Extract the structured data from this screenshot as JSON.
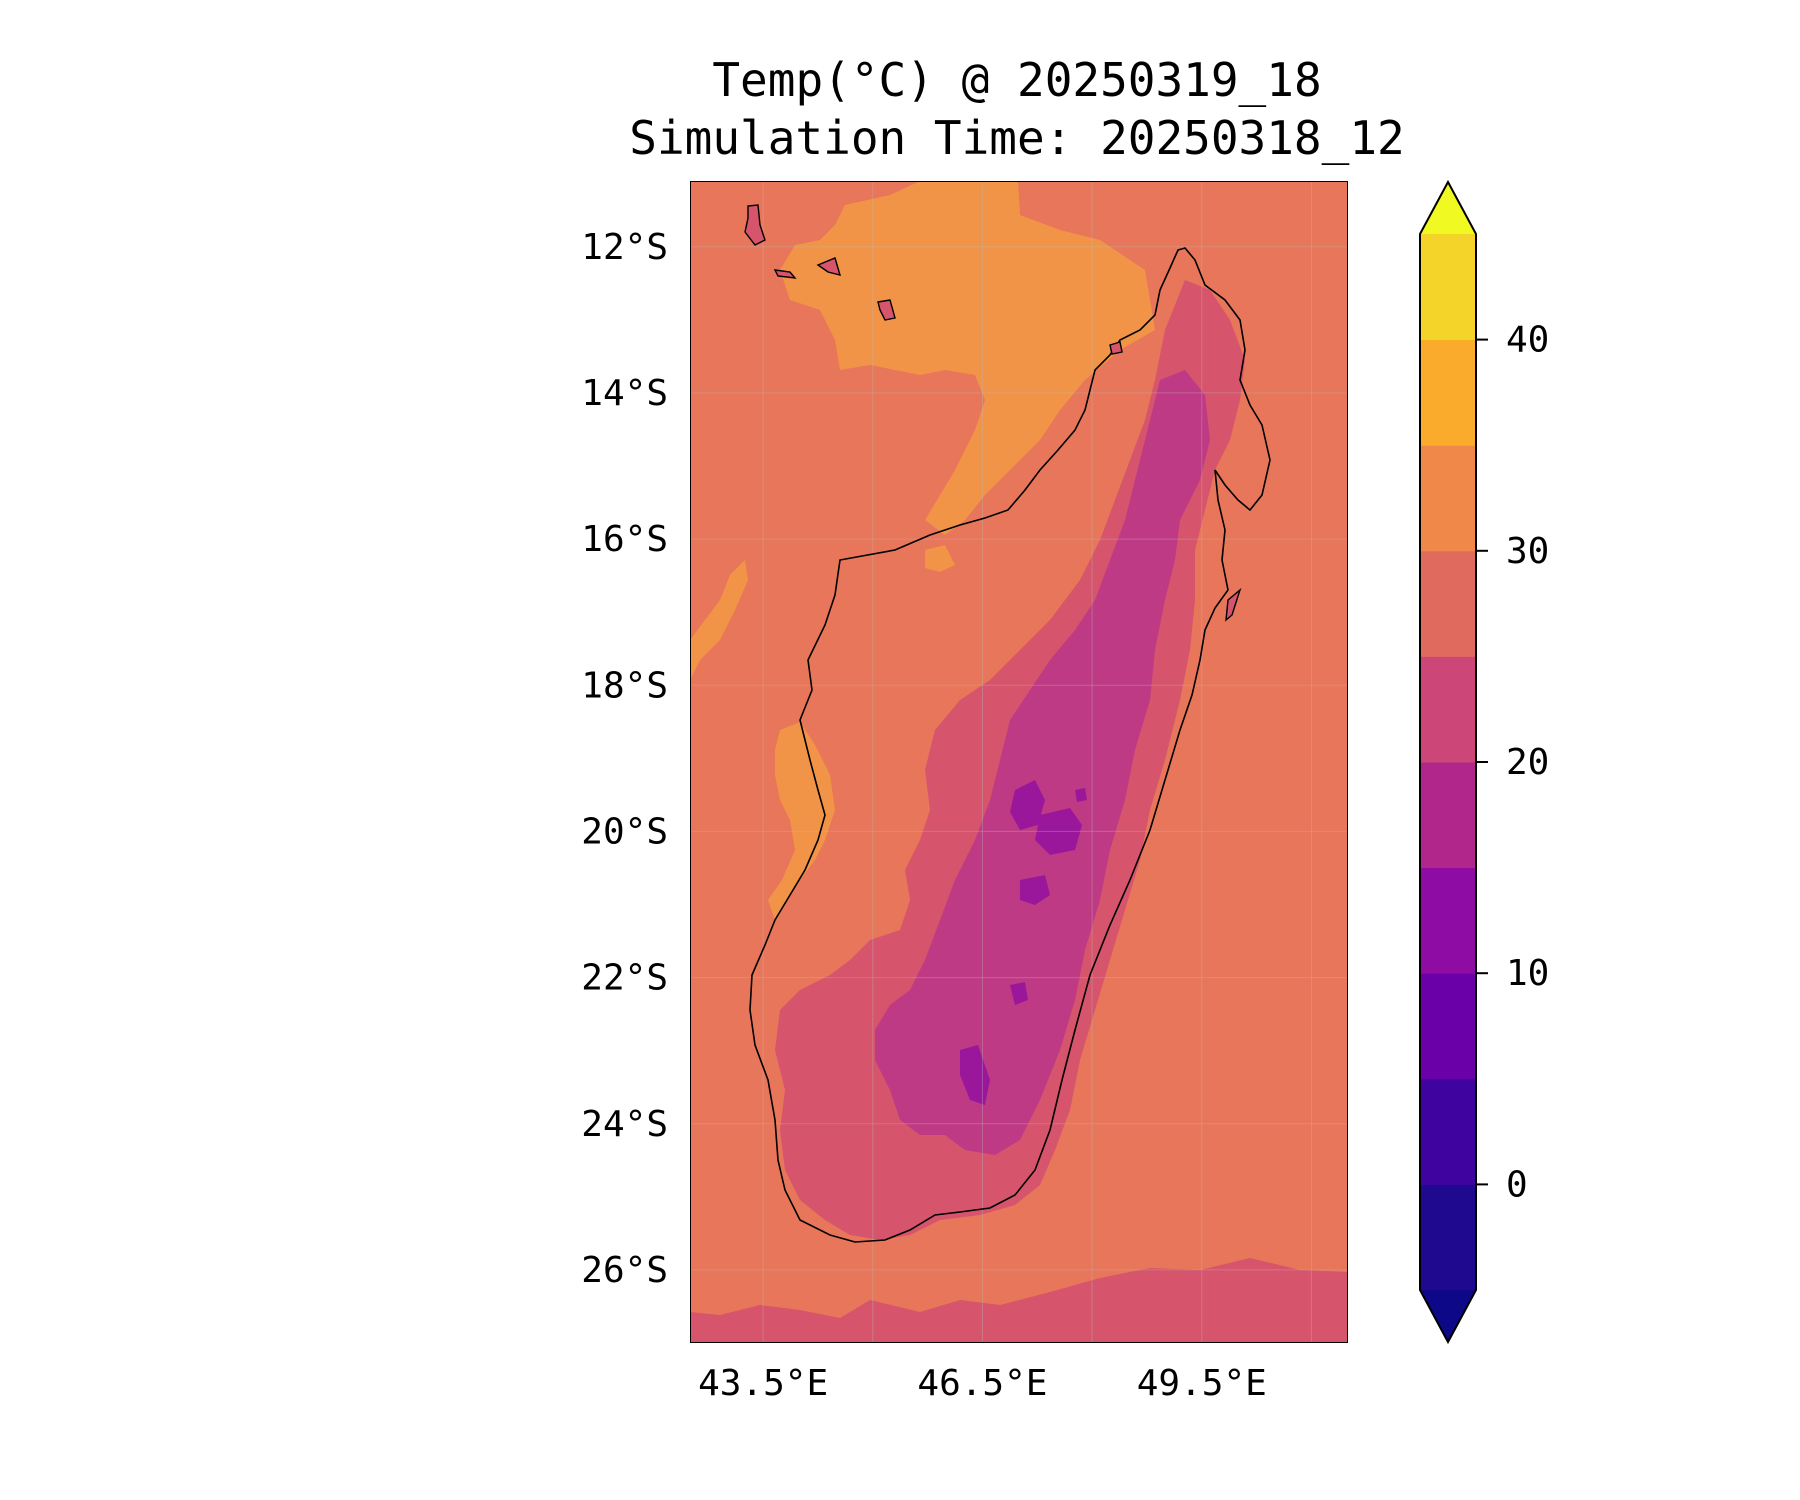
{
  "title": {
    "line1": "Temp(°C) @ 20250319_18",
    "line2": "Simulation Time: 20250318_12"
  },
  "map": {
    "region_lon": [
      42.5,
      51.5
    ],
    "region_lat": [
      -27.0,
      -11.1
    ],
    "lat_ticks": [
      {
        "value": -12,
        "label": "12°S"
      },
      {
        "value": -14,
        "label": "14°S"
      },
      {
        "value": -16,
        "label": "16°S"
      },
      {
        "value": -18,
        "label": "18°S"
      },
      {
        "value": -20,
        "label": "20°S"
      },
      {
        "value": -22,
        "label": "22°S"
      },
      {
        "value": -24,
        "label": "24°S"
      },
      {
        "value": -26,
        "label": "26°S"
      }
    ],
    "lon_ticks": [
      {
        "value": 43.5,
        "label": "43.5°E"
      },
      {
        "value": 46.5,
        "label": "46.5°E"
      },
      {
        "value": 49.5,
        "label": "49.5°E"
      }
    ],
    "gridlines": true,
    "background_color": "#e8765a"
  },
  "colorbar": {
    "min": -5,
    "max": 45,
    "extend": "both",
    "boundaries": [
      -5,
      0,
      5,
      10,
      15,
      20,
      25,
      30,
      35,
      40,
      45
    ],
    "colors": [
      "#1f0a8f",
      "#3f03a0",
      "#6a00a8",
      "#8e0ca4",
      "#b0268b",
      "#cc4778",
      "#e06a5e",
      "#f0884a",
      "#fbab2b",
      "#f5d42a"
    ],
    "under_color": "#0d0887",
    "over_color": "#f0f921",
    "ticks": [
      {
        "value": 0,
        "label": "0"
      },
      {
        "value": 10,
        "label": "10"
      },
      {
        "value": 20,
        "label": "20"
      },
      {
        "value": 30,
        "label": "30"
      },
      {
        "value": 40,
        "label": "40"
      }
    ]
  }
}
